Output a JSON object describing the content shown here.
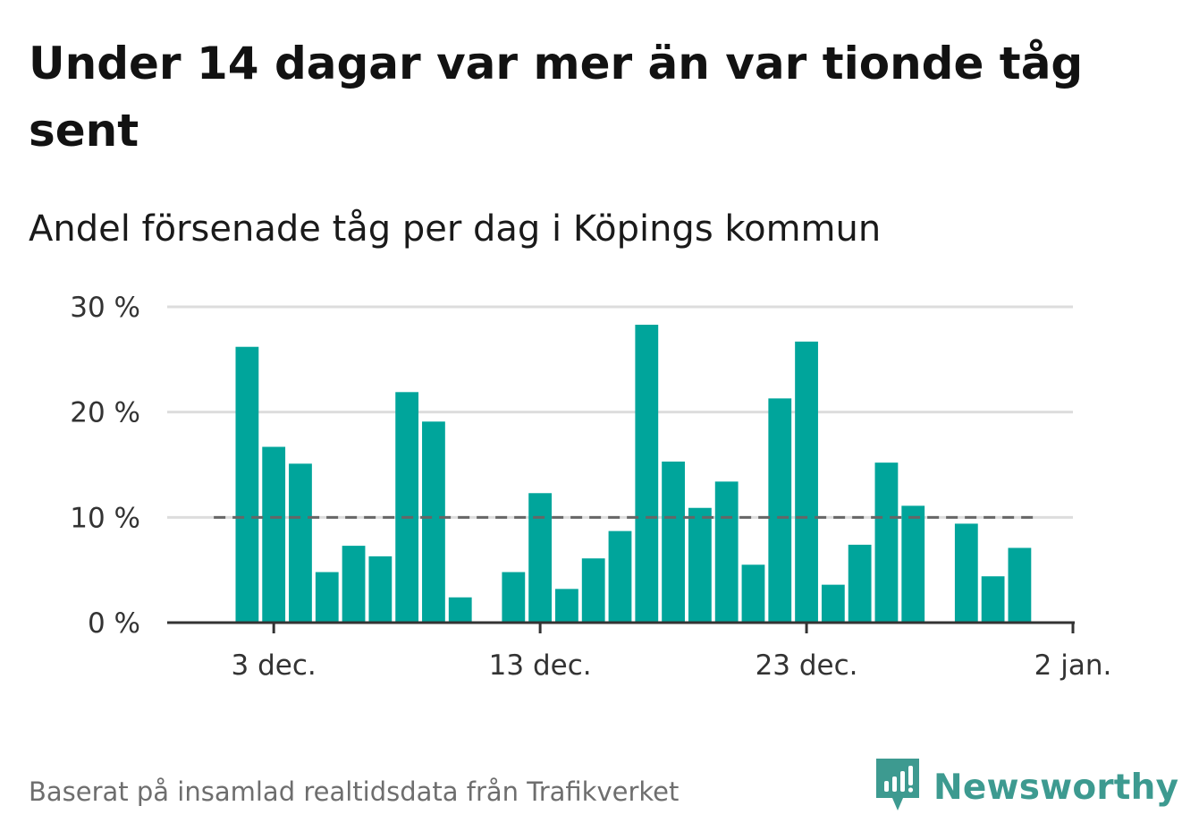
{
  "title": "Under 14 dagar var mer än var tionde tåg sent",
  "subtitle": "Andel försenade tåg per dag i Köpings kommun",
  "source": "Baserat på insamlad realtidsdata från Trafikverket",
  "brand": "Newsworthy",
  "colors": {
    "bar": "#00a59b",
    "reference_line": "#666666",
    "grid": "#dddddd",
    "axis": "#333333",
    "brand": "#3d9a90"
  },
  "icons": {
    "logo": "newsworthy-logo-icon"
  },
  "chart_data": {
    "type": "bar",
    "title": "Andel försenade tåg per dag i Köpings kommun",
    "xlabel": "",
    "ylabel": "",
    "x_ticks": [
      {
        "label": "3 dec.",
        "date": "2023-12-03"
      },
      {
        "label": "13 dec.",
        "date": "2023-12-13"
      },
      {
        "label": "23 dec.",
        "date": "2023-12-23"
      },
      {
        "label": "2 jan.",
        "date": "2024-01-02"
      }
    ],
    "y_ticks": [
      {
        "label": "0 %",
        "value": 0
      },
      {
        "label": "10 %",
        "value": 10
      },
      {
        "label": "20 %",
        "value": 20
      },
      {
        "label": "30 %",
        "value": 30
      }
    ],
    "ylim": [
      0,
      30
    ],
    "xlim": [
      "2023-11-29",
      "2024-01-02"
    ],
    "reference_line": {
      "value": 10,
      "style": "dashed"
    },
    "grid": true,
    "series": [
      {
        "values": [
          {
            "date": "2023-12-02",
            "value": 26.2
          },
          {
            "date": "2023-12-03",
            "value": 16.7
          },
          {
            "date": "2023-12-04",
            "value": 15.1
          },
          {
            "date": "2023-12-05",
            "value": 4.8
          },
          {
            "date": "2023-12-06",
            "value": 7.3
          },
          {
            "date": "2023-12-07",
            "value": 6.3
          },
          {
            "date": "2023-12-08",
            "value": 21.9
          },
          {
            "date": "2023-12-09",
            "value": 19.1
          },
          {
            "date": "2023-12-10",
            "value": 2.4
          },
          {
            "date": "2023-12-12",
            "value": 4.8
          },
          {
            "date": "2023-12-13",
            "value": 12.3
          },
          {
            "date": "2023-12-14",
            "value": 3.2
          },
          {
            "date": "2023-12-15",
            "value": 6.1
          },
          {
            "date": "2023-12-16",
            "value": 8.7
          },
          {
            "date": "2023-12-17",
            "value": 28.3
          },
          {
            "date": "2023-12-18",
            "value": 15.3
          },
          {
            "date": "2023-12-19",
            "value": 10.9
          },
          {
            "date": "2023-12-20",
            "value": 13.4
          },
          {
            "date": "2023-12-21",
            "value": 5.5
          },
          {
            "date": "2023-12-22",
            "value": 21.3
          },
          {
            "date": "2023-12-23",
            "value": 26.7
          },
          {
            "date": "2023-12-24",
            "value": 3.6
          },
          {
            "date": "2023-12-25",
            "value": 7.4
          },
          {
            "date": "2023-12-26",
            "value": 15.2
          },
          {
            "date": "2023-12-27",
            "value": 11.1
          },
          {
            "date": "2023-12-29",
            "value": 9.4
          },
          {
            "date": "2023-12-30",
            "value": 4.4
          },
          {
            "date": "2023-12-31",
            "value": 7.1
          }
        ]
      }
    ]
  }
}
